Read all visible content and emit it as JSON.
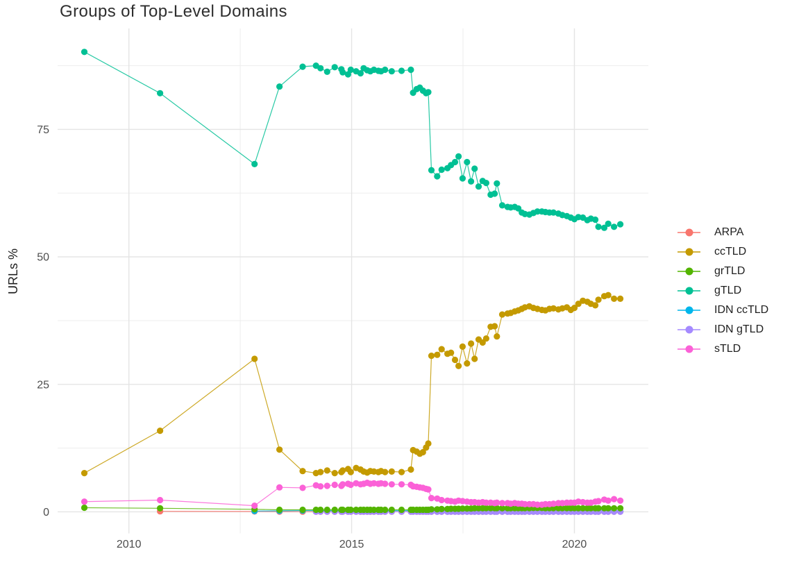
{
  "chart_data": {
    "type": "line",
    "title": "Groups of Top-Level Domains",
    "xlabel": "",
    "ylabel": "URLs %",
    "x_range": [
      2008.4,
      2021.66
    ],
    "y_range": [
      -4.23,
      94.8
    ],
    "x_ticks": {
      "values": [
        2010,
        2015,
        2020
      ],
      "labels": [
        "2010",
        "2015",
        "2020"
      ]
    },
    "x_minor": [
      2012.5,
      2017.5
    ],
    "y_ticks": {
      "values": [
        0,
        25,
        50,
        75
      ],
      "labels": [
        "0",
        "25",
        "50",
        "75"
      ]
    },
    "y_minor": [
      12.5,
      37.5,
      62.5,
      87.5
    ],
    "grid": true,
    "legend_position": "right",
    "style": {
      "grid_major_color": "#e4e4e4",
      "grid_minor_color": "#ededed",
      "tick_label_color": "#4d4d4d",
      "title_color": "#2e2e2e",
      "text_color": "#1f1f1f",
      "point_radius": 4.6,
      "line_width": 1.2
    },
    "x_dense": [
      2013.9,
      2014.2,
      2014.3,
      2014.45,
      2014.62,
      2014.77,
      2014.8,
      2014.92,
      2014.98,
      2015.1,
      2015.2,
      2015.27,
      2015.35,
      2015.42,
      2015.5,
      2015.6,
      2015.66,
      2015.75,
      2015.9,
      2016.12,
      2016.33,
      2016.38,
      2016.46,
      2016.53,
      2016.6,
      2016.67,
      2016.72,
      2016.79,
      2016.92,
      2017.02,
      2017.15,
      2017.23,
      2017.32,
      2017.4,
      2017.49,
      2017.59,
      2017.68,
      2017.76,
      2017.85,
      2017.94,
      2018.02,
      2018.12,
      2018.21,
      2018.26,
      2018.38,
      2018.5,
      2018.57,
      2018.66,
      2018.74,
      2018.82,
      2018.89,
      2018.99,
      2019.08,
      2019.17,
      2019.27,
      2019.35,
      2019.44,
      2019.53,
      2019.64,
      2019.73,
      2019.83,
      2019.92,
      2020.0,
      2020.09,
      2020.19,
      2020.29,
      2020.37,
      2020.47,
      2020.54,
      2020.67,
      2020.76,
      2020.89,
      2021.03
    ],
    "draw_order": [
      "ARPA",
      "IDN ccTLD",
      "IDN gTLD",
      "grTLD",
      "sTLD",
      "ccTLD",
      "gTLD"
    ],
    "series": [
      {
        "name": "ARPA",
        "color": "#F8766D",
        "early": [
          [
            2010.7,
            0.1
          ],
          [
            2012.82,
            0.07
          ],
          [
            2013.38,
            0.05
          ]
        ],
        "dense": [
          0.03,
          0.03,
          0.03,
          0.03,
          0.03,
          0.03,
          0.03,
          0.03,
          0.03,
          0.03,
          0.03,
          0.03,
          0.03,
          0.03,
          0.03,
          0.03,
          0.03,
          0.03,
          0.03,
          0.03,
          0.03,
          0.03,
          0.03,
          0.03,
          0.03,
          0.03,
          0.03,
          0.03,
          0.03,
          0.03,
          0.03,
          0.03,
          0.03,
          0.03,
          0.03,
          0.03,
          0.03,
          0.03,
          0.03,
          0.03,
          0.03,
          0.03,
          0.03,
          0.03,
          0.03,
          0.03,
          0.03,
          0.03,
          0.03,
          0.03,
          0.03,
          0.03,
          0.03,
          0.03,
          0.03,
          0.03,
          0.03,
          0.03,
          0.03,
          0.03,
          0.03,
          0.03,
          0.03,
          0.03,
          0.03,
          0.03,
          0.03,
          0.03,
          0.03,
          0.03,
          0.03,
          0.03,
          0.03
        ]
      },
      {
        "name": "ccTLD",
        "color": "#C49A00",
        "early": [
          [
            2009.0,
            7.6
          ],
          [
            2010.7,
            15.9
          ],
          [
            2012.82,
            30.0
          ],
          [
            2013.38,
            12.2
          ]
        ],
        "dense": [
          8.0,
          7.6,
          7.8,
          8.1,
          7.6,
          7.8,
          8.1,
          8.4,
          7.8,
          8.6,
          8.3,
          7.9,
          7.7,
          8.0,
          7.9,
          7.8,
          8.0,
          7.8,
          7.9,
          7.8,
          8.3,
          12.1,
          11.8,
          11.4,
          11.7,
          12.6,
          13.4,
          30.6,
          30.8,
          31.9,
          31.0,
          31.2,
          29.8,
          28.6,
          32.4,
          29.1,
          33.0,
          30.0,
          33.8,
          33.2,
          34.0,
          36.3,
          36.4,
          34.4,
          38.7,
          38.9,
          39.0,
          39.3,
          39.5,
          39.8,
          40.1,
          40.3,
          40.0,
          39.8,
          39.6,
          39.5,
          39.8,
          39.9,
          39.7,
          39.9,
          40.1,
          39.6,
          40.0,
          40.8,
          41.4,
          41.2,
          40.8,
          40.5,
          41.6,
          42.3,
          42.5,
          41.8,
          41.8
        ]
      },
      {
        "name": "grTLD",
        "color": "#53B400",
        "early": [
          [
            2009.0,
            0.8
          ],
          [
            2010.7,
            0.7
          ],
          [
            2012.82,
            0.5
          ],
          [
            2013.38,
            0.4
          ]
        ],
        "dense": [
          0.4,
          0.4,
          0.4,
          0.4,
          0.4,
          0.4,
          0.4,
          0.4,
          0.4,
          0.4,
          0.4,
          0.4,
          0.4,
          0.4,
          0.4,
          0.4,
          0.4,
          0.4,
          0.4,
          0.4,
          0.4,
          0.4,
          0.4,
          0.4,
          0.4,
          0.4,
          0.4,
          0.5,
          0.5,
          0.55,
          0.55,
          0.6,
          0.6,
          0.6,
          0.65,
          0.65,
          0.65,
          0.7,
          0.7,
          0.7,
          0.72,
          0.72,
          0.72,
          0.72,
          0.7,
          0.7,
          0.7,
          0.72,
          0.72,
          0.72,
          0.72,
          0.72,
          0.75,
          0.75,
          0.75,
          0.72,
          0.72,
          0.72,
          0.72,
          0.72,
          0.72,
          0.72,
          0.72,
          0.7,
          0.7,
          0.7,
          0.7,
          0.7,
          0.7,
          0.7,
          0.7,
          0.7,
          0.7
        ]
      },
      {
        "name": "gTLD",
        "color": "#00C094",
        "early": [
          [
            2009.0,
            90.2
          ],
          [
            2010.7,
            82.1
          ],
          [
            2012.82,
            68.2
          ],
          [
            2013.38,
            83.4
          ]
        ],
        "dense": [
          87.3,
          87.5,
          87.0,
          86.3,
          87.2,
          86.8,
          86.2,
          85.8,
          86.7,
          86.4,
          86.0,
          87.0,
          86.6,
          86.4,
          86.7,
          86.5,
          86.4,
          86.7,
          86.4,
          86.5,
          86.7,
          82.2,
          82.9,
          83.2,
          82.6,
          82.1,
          82.3,
          67.0,
          65.8,
          67.1,
          67.4,
          68.0,
          68.6,
          69.7,
          65.4,
          68.6,
          64.8,
          67.3,
          63.8,
          64.9,
          64.5,
          62.2,
          62.4,
          64.4,
          60.1,
          59.8,
          59.7,
          59.8,
          59.5,
          58.7,
          58.4,
          58.3,
          58.6,
          58.9,
          58.9,
          58.8,
          58.7,
          58.7,
          58.5,
          58.2,
          58.0,
          57.7,
          57.4,
          57.8,
          57.7,
          57.2,
          57.5,
          57.3,
          55.9,
          55.7,
          56.5,
          55.9,
          56.4
        ]
      },
      {
        "name": "IDN ccTLD",
        "color": "#00B6EB",
        "early": [
          [
            2012.82,
            0.15
          ],
          [
            2013.38,
            0.2
          ]
        ],
        "dense": [
          0.25,
          0.25,
          0.25,
          0.25,
          0.25,
          0.25,
          0.25,
          0.25,
          0.25,
          0.25,
          0.25,
          0.25,
          0.25,
          0.25,
          0.25,
          0.25,
          0.25,
          0.25,
          0.25,
          0.25,
          0.25,
          0.2,
          0.2,
          0.2,
          0.2,
          0.2,
          0.2,
          0.1,
          0.1,
          0.1,
          0.1,
          0.1,
          0.1,
          0.1,
          0.1,
          0.1,
          0.1,
          0.1,
          0.1,
          0.1,
          0.1,
          0.1,
          0.1,
          0.1,
          0.1,
          0.1,
          0.1,
          0.1,
          0.1,
          0.1,
          0.1,
          0.1,
          0.1,
          0.1,
          0.1,
          0.1,
          0.1,
          0.1,
          0.1,
          0.1,
          0.1,
          0.1,
          0.1,
          0.1,
          0.1,
          0.1,
          0.1,
          0.1,
          0.1,
          0.1,
          0.1,
          0.1,
          0.1
        ]
      },
      {
        "name": "IDN gTLD",
        "color": "#A58AFF",
        "early": [],
        "dense": [
          null,
          0.05,
          0.05,
          0.05,
          0.05,
          0.05,
          0.05,
          0.05,
          0.05,
          0.05,
          0.05,
          0.05,
          0.05,
          0.05,
          0.05,
          0.05,
          0.05,
          0.05,
          0.05,
          0.05,
          0.05,
          0.05,
          0.05,
          0.05,
          0.05,
          0.05,
          0.05,
          0.02,
          0.02,
          0.02,
          0.02,
          0.02,
          0.02,
          0.02,
          0.02,
          0.02,
          0.02,
          0.02,
          0.02,
          0.02,
          0.02,
          0.02,
          0.02,
          0.02,
          0.02,
          0.02,
          0.02,
          0.02,
          0.02,
          0.02,
          0.02,
          0.02,
          0.02,
          0.02,
          0.02,
          0.02,
          0.02,
          0.02,
          0.02,
          0.02,
          0.02,
          0.02,
          0.02,
          0.02,
          0.02,
          0.02,
          0.02,
          0.02,
          0.02,
          0.02,
          0.02,
          0.02,
          0.02
        ]
      },
      {
        "name": "sTLD",
        "color": "#FB61D7",
        "early": [
          [
            2009.0,
            2.0
          ],
          [
            2010.7,
            2.3
          ],
          [
            2012.82,
            1.2
          ],
          [
            2013.38,
            4.8
          ]
        ],
        "dense": [
          4.7,
          5.2,
          5.0,
          5.1,
          5.3,
          5.1,
          5.4,
          5.5,
          5.3,
          5.6,
          5.4,
          5.5,
          5.7,
          5.5,
          5.6,
          5.5,
          5.6,
          5.5,
          5.4,
          5.4,
          5.3,
          5.0,
          4.9,
          4.8,
          4.7,
          4.5,
          4.4,
          2.7,
          2.6,
          2.3,
          2.2,
          2.1,
          2.0,
          2.2,
          2.1,
          2.0,
          1.9,
          1.9,
          1.8,
          1.9,
          1.8,
          1.8,
          1.7,
          1.8,
          1.7,
          1.7,
          1.6,
          1.7,
          1.6,
          1.6,
          1.5,
          1.5,
          1.5,
          1.4,
          1.4,
          1.5,
          1.5,
          1.6,
          1.7,
          1.7,
          1.8,
          1.8,
          1.8,
          2.0,
          1.9,
          1.8,
          1.8,
          2.0,
          2.1,
          2.4,
          2.2,
          2.5,
          2.2
        ]
      }
    ]
  }
}
